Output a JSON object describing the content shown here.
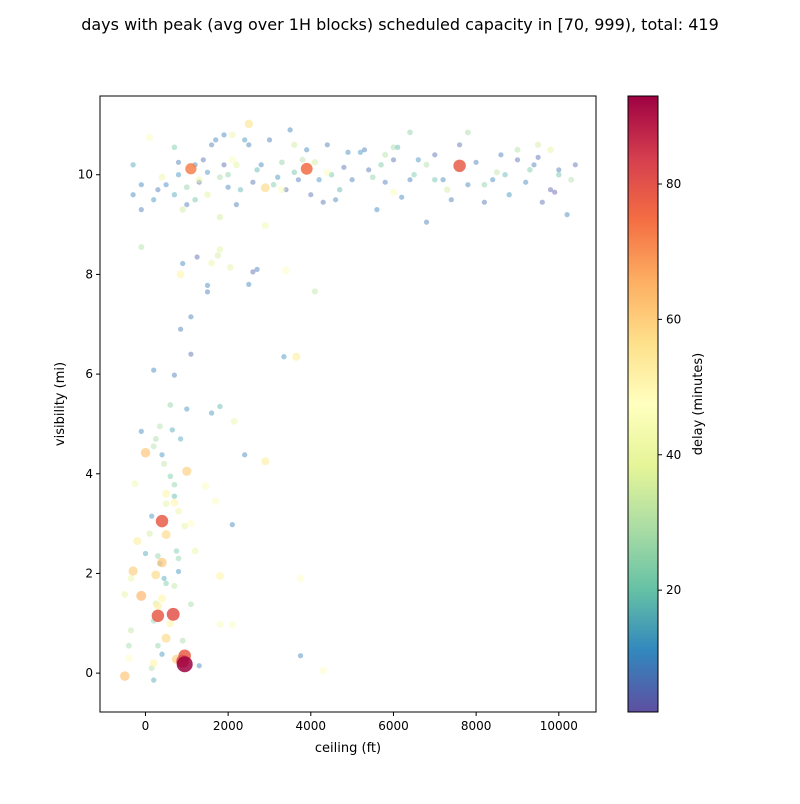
{
  "chart_data": {
    "type": "scatter",
    "title": "days with peak (avg over 1H blocks) scheduled capacity in [70, 999), total: 419",
    "xlabel": "ceiling (ft)",
    "ylabel": "visibility (mi)",
    "xlim": [
      -1100,
      10900
    ],
    "ylim": [
      -0.78,
      11.58
    ],
    "xticks": [
      0,
      2000,
      4000,
      6000,
      8000,
      10000
    ],
    "yticks": [
      0,
      2,
      4,
      6,
      8,
      10
    ],
    "colorbar": {
      "label": "delay (minutes)",
      "range": [
        2,
        93
      ],
      "ticks": [
        20,
        40,
        60,
        80
      ],
      "colormap": [
        "#5e4fa2",
        "#3288bd",
        "#66c2a5",
        "#abdda4",
        "#e6f598",
        "#ffffbf",
        "#fee08b",
        "#fdae61",
        "#f46d43",
        "#d53e4f",
        "#9e0142"
      ]
    },
    "grid": false,
    "marker_size_encodes": "delay",
    "points": [
      [
        950,
        0.18,
        93
      ],
      [
        900,
        0.24,
        80
      ],
      [
        950,
        0.35,
        78
      ],
      [
        670,
        1.18,
        80
      ],
      [
        300,
        1.15,
        78
      ],
      [
        400,
        3.05,
        78
      ],
      [
        7600,
        10.18,
        78
      ],
      [
        3900,
        10.12,
        75
      ],
      [
        1100,
        10.12,
        72
      ],
      [
        -500,
        -0.06,
        62
      ],
      [
        -100,
        1.55,
        65
      ],
      [
        0,
        4.42,
        62
      ],
      [
        1000,
        4.05,
        60
      ],
      [
        -300,
        2.05,
        60
      ],
      [
        400,
        2.22,
        62
      ],
      [
        500,
        2.78,
        58
      ],
      [
        250,
        1.97,
        58
      ],
      [
        500,
        0.7,
        58
      ],
      [
        750,
        0.28,
        60
      ],
      [
        2900,
        9.74,
        58
      ],
      [
        2500,
        11.02,
        55
      ],
      [
        3650,
        6.35,
        52
      ],
      [
        -200,
        2.65,
        52
      ],
      [
        500,
        3.6,
        50
      ],
      [
        700,
        3.42,
        50
      ],
      [
        850,
        8.0,
        50
      ],
      [
        2900,
        4.25,
        52
      ],
      [
        1800,
        1.95,
        50
      ],
      [
        300,
        1.35,
        52
      ],
      [
        600,
        1.0,
        50
      ],
      [
        200,
        0.2,
        50
      ],
      [
        4300,
        0.05,
        48
      ],
      [
        3750,
        1.9,
        48
      ],
      [
        2100,
        0.97,
        45
      ],
      [
        1800,
        0.98,
        45
      ],
      [
        -400,
        0.3,
        48
      ],
      [
        400,
        1.5,
        50
      ],
      [
        1100,
        3.0,
        48
      ],
      [
        1450,
        3.75,
        45
      ],
      [
        1700,
        3.45,
        45
      ],
      [
        3400,
        8.08,
        48
      ],
      [
        2100,
        10.3,
        45
      ],
      [
        4400,
        10.05,
        45
      ],
      [
        3300,
        9.7,
        45
      ],
      [
        6000,
        9.65,
        45
      ],
      [
        1600,
        8.23,
        40
      ],
      [
        1800,
        8.5,
        38
      ],
      [
        2050,
        8.14,
        38
      ],
      [
        1750,
        8.38,
        35
      ],
      [
        2150,
        5.05,
        40
      ],
      [
        1200,
        2.45,
        40
      ],
      [
        950,
        2.95,
        38
      ],
      [
        -500,
        1.58,
        38
      ],
      [
        -350,
        1.9,
        40
      ],
      [
        -250,
        3.8,
        42
      ],
      [
        100,
        2.8,
        35
      ],
      [
        250,
        1.4,
        35
      ],
      [
        700,
        1.75,
        32
      ],
      [
        500,
        3.4,
        38
      ],
      [
        800,
        3.25,
        40
      ],
      [
        1800,
        9.15,
        35
      ],
      [
        2900,
        8.98,
        42
      ],
      [
        4100,
        7.66,
        32
      ],
      [
        -100,
        8.55,
        30
      ],
      [
        3600,
        10.6,
        35
      ],
      [
        3800,
        10.3,
        30
      ],
      [
        4100,
        10.25,
        35
      ],
      [
        5800,
        10.4,
        30
      ],
      [
        6000,
        10.55,
        28
      ],
      [
        6400,
        10.85,
        25
      ],
      [
        6800,
        10.2,
        30
      ],
      [
        7300,
        9.7,
        35
      ],
      [
        7800,
        10.85,
        28
      ],
      [
        8500,
        10.05,
        32
      ],
      [
        9000,
        10.5,
        30
      ],
      [
        9500,
        10.6,
        35
      ],
      [
        9800,
        10.5,
        38
      ],
      [
        10300,
        9.9,
        30
      ],
      [
        100,
        10.75,
        45
      ],
      [
        2100,
        10.8,
        40
      ],
      [
        1300,
        9.9,
        40
      ],
      [
        1500,
        9.6,
        38
      ],
      [
        400,
        9.95,
        40
      ],
      [
        2200,
        10.2,
        38
      ],
      [
        900,
        9.3,
        35
      ],
      [
        350,
        4.95,
        30
      ],
      [
        250,
        4.7,
        28
      ],
      [
        450,
        4.2,
        32
      ],
      [
        200,
        4.55,
        30
      ],
      [
        600,
        5.38,
        25
      ],
      [
        600,
        3.95,
        22
      ],
      [
        700,
        3.78,
        25
      ],
      [
        800,
        2.3,
        25
      ],
      [
        300,
        2.35,
        25
      ],
      [
        500,
        1.8,
        22
      ],
      [
        200,
        1.05,
        25
      ],
      [
        300,
        0.55,
        25
      ],
      [
        150,
        0.1,
        30
      ],
      [
        900,
        0.65,
        28
      ],
      [
        -400,
        0.55,
        28
      ],
      [
        -350,
        0.86,
        32
      ],
      [
        1100,
        1.38,
        28
      ],
      [
        750,
        2.45,
        22
      ],
      [
        650,
        4.88,
        15
      ],
      [
        850,
        4.7,
        15
      ],
      [
        1000,
        5.3,
        12
      ],
      [
        1600,
        5.22,
        12
      ],
      [
        1800,
        5.35,
        18
      ],
      [
        200,
        6.08,
        10
      ],
      [
        700,
        5.98,
        8
      ],
      [
        850,
        6.9,
        8
      ],
      [
        1100,
        6.4,
        5
      ],
      [
        1100,
        7.15,
        8
      ],
      [
        900,
        8.22,
        10
      ],
      [
        1500,
        7.65,
        8
      ],
      [
        1500,
        7.78,
        10
      ],
      [
        1250,
        8.35,
        5
      ],
      [
        2500,
        7.8,
        10
      ],
      [
        2600,
        8.05,
        5
      ],
      [
        2700,
        8.1,
        8
      ],
      [
        2400,
        4.38,
        10
      ],
      [
        2100,
        2.98,
        10
      ],
      [
        3350,
        6.35,
        12
      ],
      [
        3750,
        0.35,
        10
      ],
      [
        1300,
        0.15,
        10
      ],
      [
        -100,
        4.85,
        10
      ],
      [
        200,
        -0.14,
        15
      ],
      [
        400,
        0.38,
        12
      ],
      [
        800,
        2.04,
        12
      ],
      [
        0,
        2.4,
        15
      ],
      [
        150,
        3.15,
        12
      ],
      [
        400,
        4.38,
        12
      ],
      [
        700,
        3.55,
        18
      ],
      [
        450,
        1.9,
        15
      ],
      [
        350,
        2.2,
        18
      ],
      [
        -300,
        10.2,
        15
      ],
      [
        -100,
        9.8,
        10
      ],
      [
        200,
        9.5,
        12
      ],
      [
        300,
        9.7,
        8
      ],
      [
        500,
        9.8,
        10
      ],
      [
        700,
        9.6,
        15
      ],
      [
        800,
        10.0,
        12
      ],
      [
        1000,
        9.4,
        8
      ],
      [
        1200,
        10.2,
        10
      ],
      [
        1300,
        9.85,
        6
      ],
      [
        1500,
        10.05,
        12
      ],
      [
        1600,
        10.6,
        8
      ],
      [
        1700,
        10.7,
        10
      ],
      [
        1900,
        10.2,
        5
      ],
      [
        2000,
        9.75,
        10
      ],
      [
        2200,
        9.4,
        8
      ],
      [
        2400,
        10.7,
        12
      ],
      [
        2600,
        9.85,
        6
      ],
      [
        2800,
        10.2,
        10
      ],
      [
        3000,
        10.7,
        8
      ],
      [
        3200,
        9.95,
        12
      ],
      [
        3400,
        9.7,
        6
      ],
      [
        3500,
        10.9,
        10
      ],
      [
        3700,
        9.9,
        8
      ],
      [
        3900,
        10.5,
        10
      ],
      [
        4000,
        9.6,
        6
      ],
      [
        4200,
        9.9,
        12
      ],
      [
        4400,
        10.6,
        8
      ],
      [
        4600,
        9.5,
        10
      ],
      [
        4800,
        10.15,
        6
      ],
      [
        5000,
        9.9,
        8
      ],
      [
        5200,
        10.45,
        12
      ],
      [
        5400,
        10.1,
        6
      ],
      [
        5600,
        9.3,
        10
      ],
      [
        5800,
        9.85,
        8
      ],
      [
        6000,
        10.3,
        6
      ],
      [
        6200,
        9.55,
        10
      ],
      [
        6400,
        9.9,
        8
      ],
      [
        6600,
        10.3,
        12
      ],
      [
        6800,
        9.05,
        8
      ],
      [
        7000,
        10.4,
        6
      ],
      [
        7200,
        9.9,
        10
      ],
      [
        7400,
        9.5,
        8
      ],
      [
        7600,
        10.6,
        6
      ],
      [
        7800,
        9.8,
        10
      ],
      [
        8000,
        10.25,
        8
      ],
      [
        8200,
        9.45,
        6
      ],
      [
        8400,
        9.9,
        10
      ],
      [
        8600,
        10.4,
        8
      ],
      [
        8800,
        9.6,
        12
      ],
      [
        9000,
        10.3,
        6
      ],
      [
        9200,
        9.85,
        10
      ],
      [
        9400,
        10.2,
        8
      ],
      [
        9600,
        9.45,
        6
      ],
      [
        9800,
        9.7,
        4
      ],
      [
        10000,
        10.1,
        8
      ],
      [
        10200,
        9.2,
        10
      ],
      [
        10400,
        10.2,
        6
      ],
      [
        9900,
        9.65,
        3
      ],
      [
        9500,
        10.35,
        5
      ],
      [
        5300,
        10.5,
        8
      ],
      [
        4900,
        10.45,
        10
      ],
      [
        4300,
        9.45,
        6
      ],
      [
        2500,
        10.6,
        8
      ],
      [
        1900,
        10.8,
        10
      ],
      [
        1400,
        10.3,
        6
      ],
      [
        800,
        10.25,
        8
      ],
      [
        -300,
        9.6,
        10
      ],
      [
        -100,
        9.3,
        8
      ],
      [
        2300,
        9.7,
        18
      ],
      [
        1200,
        9.5,
        20
      ],
      [
        2000,
        10.0,
        25
      ],
      [
        3100,
        9.8,
        22
      ],
      [
        3300,
        10.25,
        25
      ],
      [
        4500,
        10.0,
        20
      ],
      [
        4700,
        9.7,
        18
      ],
      [
        5500,
        9.95,
        25
      ],
      [
        5700,
        10.2,
        22
      ],
      [
        6100,
        10.55,
        18
      ],
      [
        6500,
        10.0,
        22
      ],
      [
        7000,
        9.9,
        20
      ],
      [
        8200,
        9.8,
        25
      ],
      [
        8700,
        10.0,
        18
      ],
      [
        9300,
        10.1,
        22
      ],
      [
        10000,
        10.0,
        20
      ],
      [
        1800,
        9.95,
        28
      ],
      [
        1000,
        9.75,
        25
      ],
      [
        700,
        10.55,
        22
      ],
      [
        2700,
        10.1,
        18
      ],
      [
        3600,
        10.05,
        20
      ]
    ]
  }
}
